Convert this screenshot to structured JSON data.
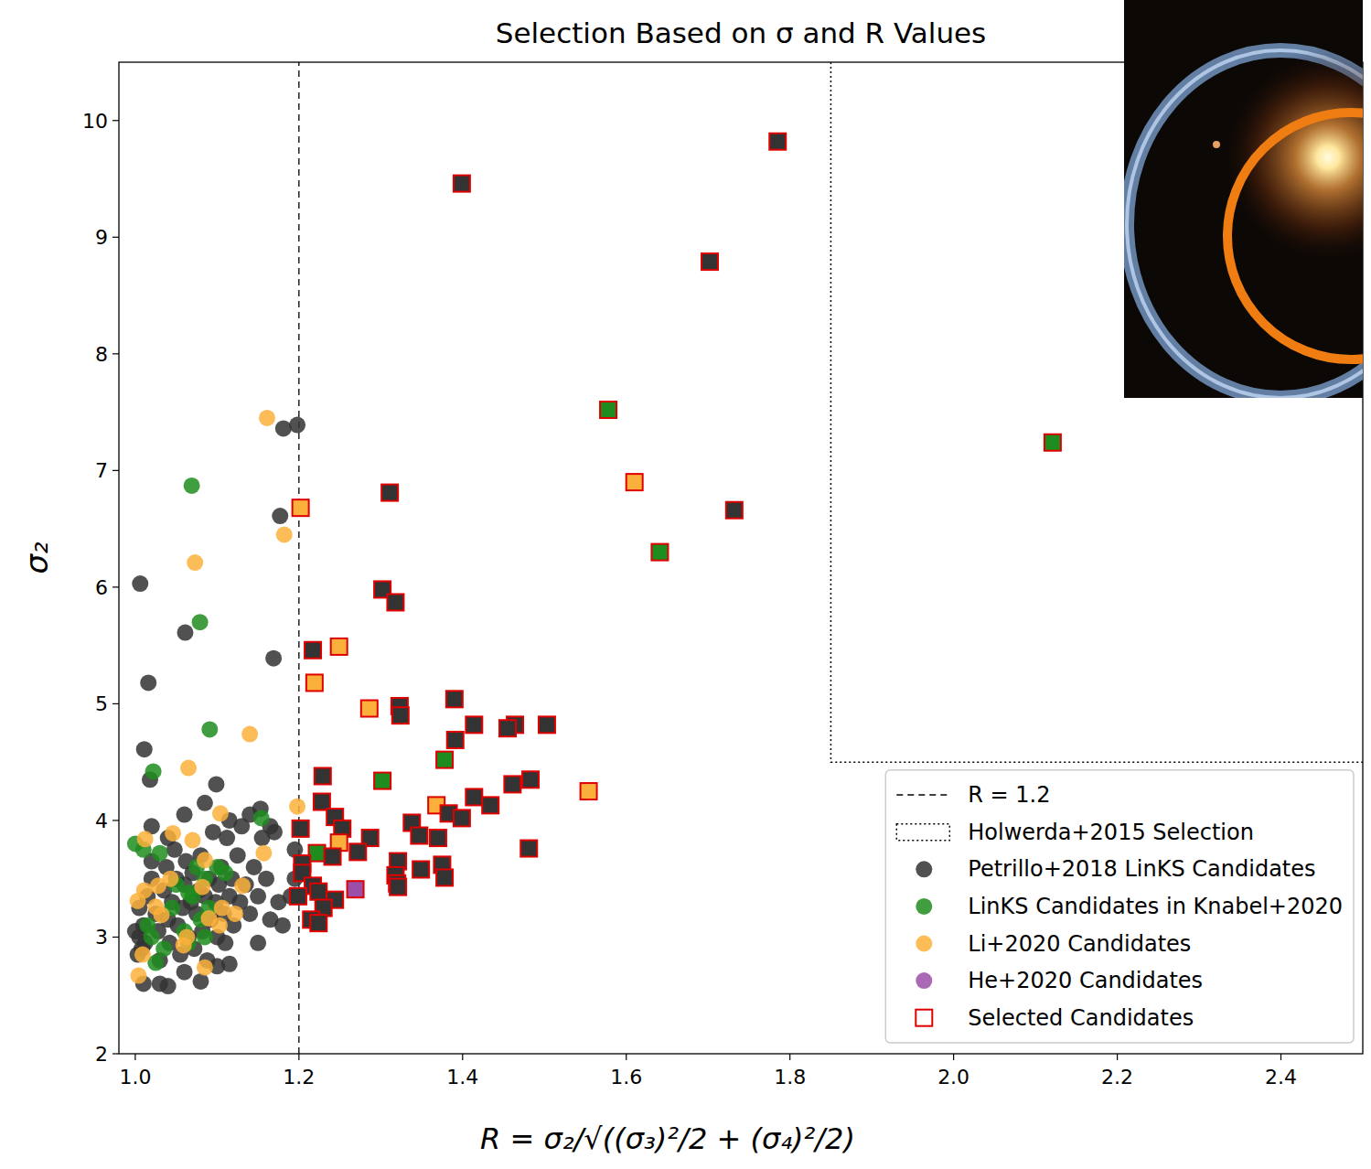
{
  "chart_data": {
    "type": "scatter",
    "title": "Selection Based on σ and R Values",
    "x_label": "R = σ₂/√((σ₃)²/2 + (σ₄)²/2)",
    "y_label": "σ₂",
    "xlim": [
      0.98,
      2.5
    ],
    "ylim": [
      2,
      10.5
    ],
    "xticks": [
      {
        "value": 1,
        "label": "1.0"
      },
      {
        "value": 1.2,
        "label": "1.2"
      },
      {
        "value": 1.4,
        "label": "1.4"
      },
      {
        "value": 1.6,
        "label": "1.6"
      },
      {
        "value": 1.8,
        "label": "1.8"
      },
      {
        "value": 2,
        "label": "2.0"
      },
      {
        "value": 2.2,
        "label": "2.2"
      },
      {
        "value": 2.4,
        "label": "2.4"
      }
    ],
    "yticks": [
      2,
      3,
      4,
      5,
      6,
      7,
      8,
      9,
      10
    ],
    "legend": "lower right",
    "reference_lines": [
      {
        "name": "R = 1.2",
        "x": 1.2,
        "line_style": "dashed",
        "color": "#000000"
      }
    ],
    "regions": [
      {
        "name": "Holwerda+2015 Selection",
        "xmin": 1.85,
        "ymin": 4.5,
        "line_style": "dotted",
        "color": "#000000"
      }
    ],
    "series": [
      {
        "name": "Petrillo+2018 LinKS Candidates",
        "color": "#333333",
        "marker": "circle",
        "x": [
          1.198,
          1.181,
          1.177,
          1.006,
          1.061,
          1.169,
          1.016,
          1.011,
          1.018,
          1.099,
          1.153,
          1.005,
          1.01,
          1.012,
          1.015,
          1.02,
          1.025,
          1.028,
          1.03,
          1.035,
          1.038,
          1.04,
          1.042,
          1.045,
          1.048,
          1.05,
          1.052,
          1.055,
          1.058,
          1.06,
          1.062,
          1.065,
          1.068,
          1.07,
          1.072,
          1.075,
          1.078,
          1.08,
          1.082,
          1.085,
          1.088,
          1.09,
          1.092,
          1.095,
          1.098,
          1.1,
          1.102,
          1.105,
          1.108,
          1.11,
          1.112,
          1.115,
          1.118,
          1.12,
          1.125,
          1.128,
          1.13,
          1.135,
          1.14,
          1.145,
          1.15,
          1.155,
          1.16,
          1.165,
          1.17,
          1.175,
          1.18,
          1.195,
          1.195,
          1.19,
          1.005,
          1.008,
          1.01,
          1.03,
          1.04,
          1.06,
          1.08,
          1.1,
          1.115,
          1.15,
          1.02,
          1.04,
          1.06,
          1.085,
          1.115,
          1.14,
          1.165,
          1.02,
          1.0,
          1.003
        ],
        "y": [
          7.39,
          7.36,
          6.61,
          6.03,
          5.61,
          5.39,
          5.18,
          4.61,
          4.35,
          4.31,
          4.1,
          3.25,
          3.1,
          2.95,
          3.35,
          3.5,
          3.2,
          3.05,
          2.8,
          3.4,
          3.6,
          3.15,
          2.95,
          3.3,
          3.75,
          3.5,
          3.1,
          2.85,
          3.25,
          3.45,
          3.65,
          3.0,
          3.3,
          3.55,
          2.9,
          3.2,
          3.4,
          3.7,
          3.05,
          3.35,
          2.8,
          3.5,
          3.15,
          3.9,
          3.3,
          3.0,
          3.45,
          3.6,
          3.2,
          2.95,
          3.85,
          3.35,
          3.5,
          3.1,
          3.7,
          3.3,
          3.95,
          3.45,
          3.2,
          3.6,
          3.35,
          3.85,
          3.5,
          3.15,
          3.9,
          3.3,
          3.1,
          3.75,
          3.5,
          3.35,
          3.0,
          2.9,
          2.6,
          2.6,
          2.58,
          2.7,
          2.62,
          2.75,
          2.77,
          2.95,
          3.65,
          3.85,
          4.05,
          4.15,
          4.0,
          4.05,
          3.95,
          3.95,
          3.05,
          2.85
        ]
      },
      {
        "name": "LinKS Candidates in Knabel+2020",
        "color": "#1e8c1e",
        "marker": "circle",
        "x": [
          1.069,
          1.079,
          1.091,
          1.022,
          1.154,
          1.0,
          1.01,
          1.015,
          1.02,
          1.025,
          1.03,
          1.035,
          1.045,
          1.05,
          1.06,
          1.065,
          1.07,
          1.075,
          1.08,
          1.085,
          1.09,
          1.1,
          1.11,
          1.085,
          1.065
        ],
        "y": [
          6.87,
          5.7,
          4.78,
          4.42,
          4.02,
          3.8,
          3.75,
          3.1,
          3.0,
          2.78,
          3.72,
          2.9,
          3.25,
          3.45,
          3.05,
          2.95,
          3.35,
          3.6,
          3.15,
          3.5,
          3.25,
          3.6,
          3.55,
          3.0,
          3.38
        ]
      },
      {
        "name": "Li+2020 Candidates",
        "color": "#fbb03b",
        "marker": "circle",
        "x": [
          1.161,
          1.182,
          1.073,
          1.14,
          1.065,
          1.198,
          1.104,
          1.012,
          1.046,
          1.07,
          1.157,
          1.028,
          1.043,
          1.082,
          1.131,
          1.085,
          1.011,
          1.025,
          1.106,
          1.122,
          1.032,
          1.09,
          1.063,
          1.059,
          1.009,
          1.004,
          1.085,
          1.103,
          1.003
        ],
        "y": [
          7.45,
          6.45,
          6.21,
          4.74,
          4.45,
          4.12,
          4.06,
          3.84,
          3.89,
          3.83,
          3.72,
          3.44,
          3.5,
          3.43,
          3.44,
          3.66,
          3.4,
          3.26,
          3.25,
          3.2,
          3.19,
          3.16,
          3.0,
          2.93,
          2.85,
          2.67,
          2.74,
          3.1,
          3.31
        ]
      },
      {
        "name": "He+2020 Candidates",
        "color": "#9b4fa8",
        "marker": "circle",
        "x": [
          1.269
        ],
        "y": [
          3.41
        ]
      },
      {
        "name": "Selected Candidates",
        "color": "#e00000",
        "marker": "square",
        "x": [
          1.785,
          1.399,
          1.702,
          1.578,
          2.121,
          1.61,
          1.311,
          1.732,
          1.202,
          1.641,
          1.302,
          1.318,
          1.217,
          1.249,
          1.219,
          1.39,
          1.323,
          1.324,
          1.286,
          1.414,
          1.464,
          1.503,
          1.455,
          1.391,
          1.229,
          1.378,
          1.302,
          1.483,
          1.461,
          1.554,
          1.414,
          1.228,
          1.434,
          1.368,
          1.383,
          1.399,
          1.244,
          1.338,
          1.253,
          1.202,
          1.347,
          1.287,
          1.37,
          1.249,
          1.481,
          1.272,
          1.222,
          1.241,
          1.204,
          1.375,
          1.321,
          1.349,
          1.378,
          1.318,
          1.32,
          1.321,
          1.204,
          1.217,
          1.224,
          1.199,
          1.244,
          1.23,
          1.215,
          1.224,
          1.269
        ],
        "y": [
          9.82,
          9.46,
          8.79,
          7.52,
          7.24,
          6.9,
          6.81,
          6.66,
          6.68,
          6.3,
          5.98,
          5.87,
          5.46,
          5.49,
          5.18,
          5.04,
          4.98,
          4.9,
          4.96,
          4.82,
          4.82,
          4.82,
          4.79,
          4.69,
          4.38,
          4.52,
          4.34,
          4.35,
          4.31,
          4.25,
          4.2,
          4.16,
          4.13,
          4.13,
          4.06,
          4.02,
          4.03,
          3.98,
          3.93,
          3.93,
          3.87,
          3.85,
          3.85,
          3.81,
          3.76,
          3.73,
          3.72,
          3.69,
          3.63,
          3.62,
          3.65,
          3.58,
          3.51,
          3.53,
          3.46,
          3.43,
          3.55,
          3.44,
          3.39,
          3.35,
          3.32,
          3.25,
          3.15,
          3.12,
          3.41
        ],
        "colors": [
          "#333333",
          "#333333",
          "#333333",
          "#1e8c1e",
          "#1e8c1e",
          "#fbb03b",
          "#333333",
          "#333333",
          "#fbb03b",
          "#1e8c1e",
          "#333333",
          "#333333",
          "#333333",
          "#fbb03b",
          "#fbb03b",
          "#333333",
          "#333333",
          "#333333",
          "#fbb03b",
          "#333333",
          "#333333",
          "#333333",
          "#333333",
          "#333333",
          "#333333",
          "#1e8c1e",
          "#1e8c1e",
          "#333333",
          "#333333",
          "#fbb03b",
          "#333333",
          "#333333",
          "#333333",
          "#fbb03b",
          "#333333",
          "#333333",
          "#333333",
          "#333333",
          "#333333",
          "#333333",
          "#333333",
          "#333333",
          "#333333",
          "#fbb03b",
          "#333333",
          "#333333",
          "#1e8c1e",
          "#333333",
          "#333333",
          "#333333",
          "#333333",
          "#333333",
          "#333333",
          "#333333",
          "#333333",
          "#333333",
          "#333333",
          "#333333",
          "#333333",
          "#333333",
          "#333333",
          "#333333",
          "#333333",
          "#333333",
          "#9b4fa8"
        ]
      }
    ]
  }
}
